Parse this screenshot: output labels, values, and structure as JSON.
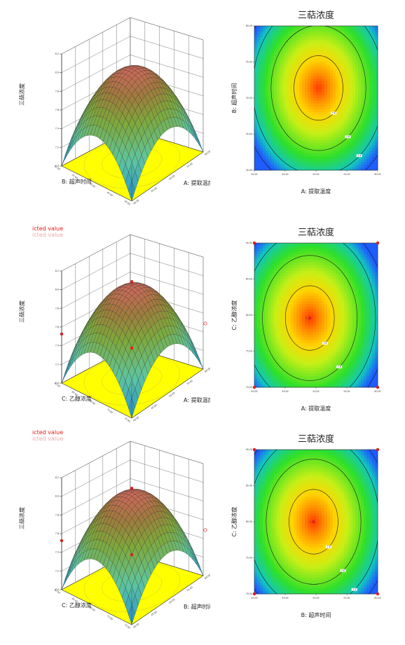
{
  "legend": {
    "line1": "icted value",
    "line2": "icted value"
  },
  "colors": {
    "floor": "#ffff00",
    "design_point": "#e31a1c",
    "contour_line": "#1a1a1a"
  },
  "chart_data": [
    {
      "type": "surface3d",
      "zlabel": "三萜浓度",
      "xlabel": "A: 提取温度",
      "ylabel": "B: 超声时间",
      "x_ticks": [
        "40.00",
        "45.00",
        "50.00",
        "55.00",
        "60.00"
      ],
      "y_ticks": [
        "40.00",
        "45.00",
        "50.00",
        "55.00",
        "60.00"
      ],
      "z_ticks": [
        "7.0",
        "7.2",
        "7.4",
        "7.6",
        "7.8",
        "8.0",
        "8.2"
      ],
      "peak_z": 8.0,
      "min_z": 7.0,
      "design_points": false
    },
    {
      "type": "contour",
      "title": "三萜浓度",
      "xlabel": "A: 提取温度",
      "ylabel": "B: 超声时间",
      "x_ticks": [
        "40.00",
        "45.00",
        "50.00",
        "55.00",
        "60.00"
      ],
      "y_ticks": [
        "40.00",
        "45.00",
        "50.00",
        "55.00",
        "60.00"
      ],
      "center": [
        0.52,
        0.43
      ],
      "levels": [
        "7.8",
        "7.6",
        "7.4",
        "7.2"
      ],
      "design_points": false
    },
    {
      "type": "surface3d",
      "zlabel": "三萜浓度",
      "xlabel": "A: 提取温度",
      "ylabel": "C: 乙醇浓度",
      "x_ticks": [
        "40.00",
        "45.00",
        "50.00",
        "55.00",
        "60.00"
      ],
      "y_ticks": [
        "70.00",
        "75.00",
        "80.00",
        "85.00",
        "90.00"
      ],
      "z_ticks": [
        "7.0",
        "7.2",
        "7.4",
        "7.6",
        "7.8",
        "8.0",
        "8.2"
      ],
      "peak_z": 8.0,
      "min_z": 7.0,
      "design_points": true
    },
    {
      "type": "contour",
      "title": "三萜浓度",
      "xlabel": "A: 提取温度",
      "ylabel": "C: 乙醇浓度",
      "x_ticks": [
        "40.00",
        "45.00",
        "50.00",
        "55.00",
        "60.00"
      ],
      "y_ticks": [
        "70.00",
        "75.00",
        "80.00",
        "85.00",
        "90.00"
      ],
      "center": [
        0.45,
        0.52
      ],
      "levels": [
        "7.8",
        "7.6",
        "7.4",
        "7.2"
      ],
      "center_label": "5",
      "design_points": true
    },
    {
      "type": "surface3d",
      "zlabel": "三萜浓度",
      "xlabel": "B: 超声时间",
      "ylabel": "C: 乙醇浓度",
      "x_ticks": [
        "40.00",
        "45.00",
        "50.00",
        "55.00",
        "60.00"
      ],
      "y_ticks": [
        "70.00",
        "75.00",
        "80.00",
        "85.00",
        "90.00"
      ],
      "z_ticks": [
        "7.0",
        "7.2",
        "7.4",
        "7.6",
        "7.8",
        "8.0",
        "8.2"
      ],
      "peak_z": 8.0,
      "min_z": 7.0,
      "design_points": true
    },
    {
      "type": "contour",
      "title": "三萜浓度",
      "xlabel": "B: 超声时间",
      "ylabel": "C: 乙醇浓度",
      "x_ticks": [
        "40.00",
        "45.00",
        "50.00",
        "55.00",
        "60.00"
      ],
      "y_ticks": [
        "70.00",
        "75.00",
        "80.00",
        "85.00",
        "90.00"
      ],
      "center": [
        0.48,
        0.5
      ],
      "levels": [
        "7.8",
        "7.6",
        "7.4",
        "7.2"
      ],
      "center_label": "5",
      "design_points": true
    }
  ]
}
